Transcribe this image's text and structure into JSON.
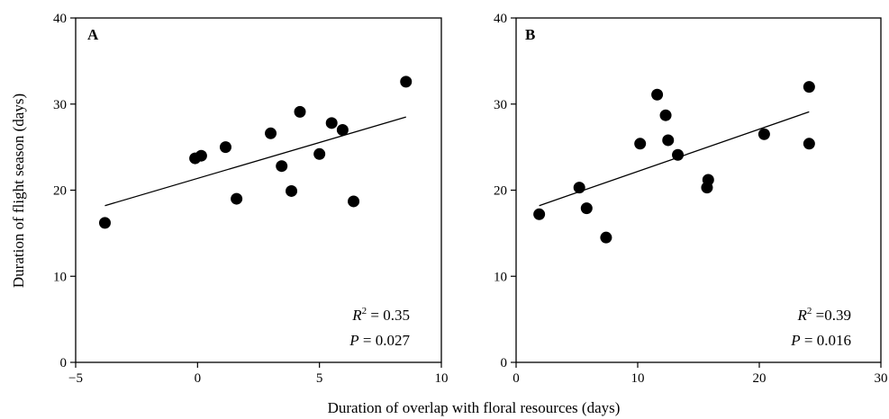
{
  "chart_data": {
    "xlabel": "Duration of overlap with floral resources (days)",
    "ylabel": "Duration of flight season (days)",
    "panels": [
      {
        "type": "scatter",
        "label": "A",
        "xlim": [
          -5,
          10
        ],
        "ylim": [
          0,
          40
        ],
        "xticks": [
          -5,
          0,
          5,
          10
        ],
        "xtick_labels": [
          "−5",
          "0",
          "5",
          "10"
        ],
        "yticks": [
          0,
          10,
          20,
          30,
          40
        ],
        "ytick_labels": [
          "0",
          "10",
          "20",
          "30",
          "40"
        ],
        "points": [
          {
            "x": -3.8,
            "y": 16.2
          },
          {
            "x": -0.1,
            "y": 23.7
          },
          {
            "x": 0.15,
            "y": 24.0
          },
          {
            "x": 1.15,
            "y": 25.0
          },
          {
            "x": 1.6,
            "y": 19.0
          },
          {
            "x": 3.0,
            "y": 26.6
          },
          {
            "x": 3.45,
            "y": 22.8
          },
          {
            "x": 3.85,
            "y": 19.9
          },
          {
            "x": 4.2,
            "y": 29.1
          },
          {
            "x": 5.0,
            "y": 24.2
          },
          {
            "x": 5.5,
            "y": 27.8
          },
          {
            "x": 5.95,
            "y": 27.0
          },
          {
            "x": 6.4,
            "y": 18.7
          },
          {
            "x": 8.55,
            "y": 32.6
          }
        ],
        "fit_line": {
          "x": [
            -3.8,
            8.55
          ],
          "y": [
            18.2,
            28.5
          ]
        },
        "r2_label": "R",
        "r2_sup": "2",
        "r2_value": " = 0.35",
        "p_label": "P",
        "p_value": " = 0.027"
      },
      {
        "type": "scatter",
        "label": "B",
        "xlim": [
          0,
          30
        ],
        "ylim": [
          0,
          40
        ],
        "xticks": [
          0,
          10,
          20,
          30
        ],
        "xtick_labels": [
          "0",
          "10",
          "20",
          "30"
        ],
        "yticks": [
          0,
          10,
          20,
          30,
          40
        ],
        "ytick_labels": [
          "0",
          "10",
          "20",
          "30",
          "40"
        ],
        "points": [
          {
            "x": 1.9,
            "y": 17.2
          },
          {
            "x": 5.2,
            "y": 20.3
          },
          {
            "x": 5.8,
            "y": 17.9
          },
          {
            "x": 7.4,
            "y": 14.5
          },
          {
            "x": 10.2,
            "y": 25.4
          },
          {
            "x": 11.6,
            "y": 31.1
          },
          {
            "x": 12.3,
            "y": 28.7
          },
          {
            "x": 12.5,
            "y": 25.8
          },
          {
            "x": 13.3,
            "y": 24.1
          },
          {
            "x": 15.7,
            "y": 20.3
          },
          {
            "x": 15.8,
            "y": 21.2
          },
          {
            "x": 20.4,
            "y": 26.5
          },
          {
            "x": 24.1,
            "y": 32.0
          },
          {
            "x": 24.1,
            "y": 25.4
          }
        ],
        "fit_line": {
          "x": [
            1.9,
            24.1
          ],
          "y": [
            18.2,
            29.1
          ]
        },
        "r2_label": "R",
        "r2_sup": "2",
        "r2_value": " =0.39",
        "p_label": "P",
        "p_value": " = 0.016"
      }
    ]
  }
}
